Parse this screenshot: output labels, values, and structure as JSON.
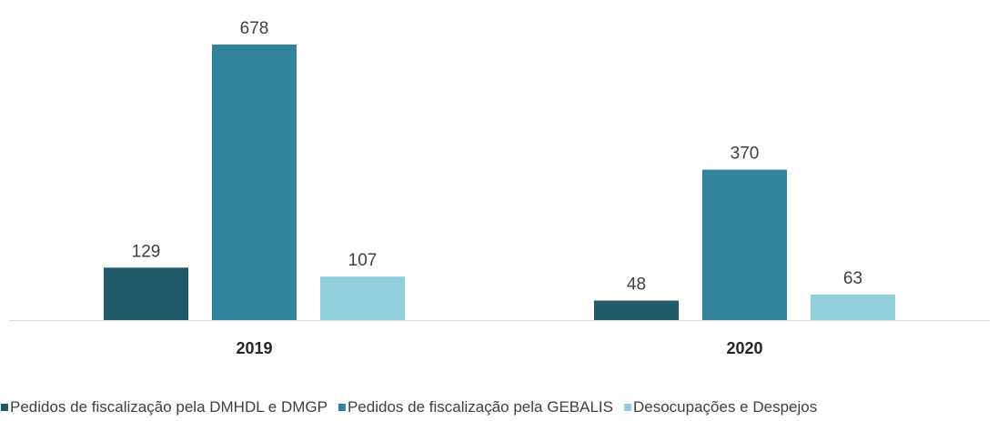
{
  "chart_data": {
    "type": "bar",
    "categories": [
      "2019",
      "2020"
    ],
    "series": [
      {
        "name": "Pedidos de fiscalização pela DMHDL e DMGP",
        "color": "#215968",
        "values": [
          129,
          48
        ]
      },
      {
        "name": "Pedidos de fiscalização pela GEBALIS",
        "color": "#31849b",
        "values": [
          678,
          370
        ]
      },
      {
        "name": "Desocupações e Despejos",
        "color": "#92cddc",
        "values": [
          107,
          63
        ]
      }
    ],
    "data_labels": true,
    "legend": "bottom"
  }
}
